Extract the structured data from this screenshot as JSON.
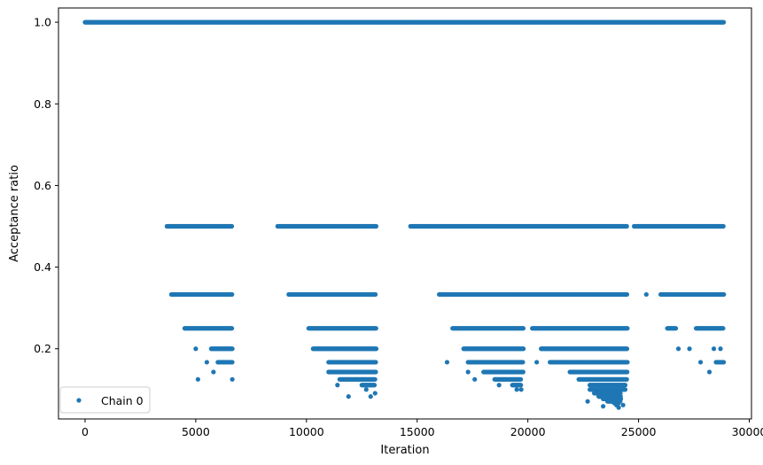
{
  "chart_data": {
    "type": "scatter",
    "xlabel": "Iteration",
    "ylabel": "Acceptance ratio",
    "xlim": [
      -1200,
      30100
    ],
    "ylim": [
      0.028,
      1.035
    ],
    "xticks": [
      0,
      5000,
      10000,
      15000,
      20000,
      25000,
      30000
    ],
    "yticks": [
      0.2,
      0.4,
      0.6,
      0.8,
      1.0
    ],
    "xtick_labels": [
      "0",
      "5000",
      "10000",
      "15000",
      "20000",
      "25000",
      "30000"
    ],
    "ytick_labels": [
      "0.2",
      "0.4",
      "0.6",
      "0.8",
      "1.0"
    ],
    "grid": false,
    "legend_position": "lower-left",
    "series": [
      {
        "name": "Chain 0",
        "color": "#1f77b4",
        "marker": "circle",
        "bands": [
          {
            "y": 1.0,
            "ranges": [
              [
                0,
                28850
              ]
            ]
          },
          {
            "y": 0.5,
            "ranges": [
              [
                3700,
                6650
              ],
              [
                8700,
                13150
              ],
              [
                14700,
                24500
              ],
              [
                24800,
                28850
              ]
            ]
          },
          {
            "y": 0.333,
            "ranges": [
              [
                3900,
                6650
              ],
              [
                9200,
                13150
              ],
              [
                16000,
                24500
              ],
              [
                26000,
                28850
              ]
            ],
            "extra": [
              16000,
              16250,
              25350
            ]
          },
          {
            "y": 0.25,
            "ranges": [
              [
                4500,
                6650
              ],
              [
                10100,
                13150
              ],
              [
                16600,
                19800
              ],
              [
                20200,
                24500
              ],
              [
                26300,
                26700
              ],
              [
                27600,
                28850
              ]
            ]
          },
          {
            "y": 0.2,
            "ranges": [
              [
                5700,
                6650
              ],
              [
                10300,
                13150
              ],
              [
                17100,
                19800
              ],
              [
                20600,
                24500
              ]
            ],
            "extra": [
              5000,
              26800,
              27300,
              28400,
              28700
            ]
          },
          {
            "y": 0.167,
            "ranges": [
              [
                6000,
                6650
              ],
              [
                11000,
                13150
              ],
              [
                17300,
                19800
              ],
              [
                21000,
                24500
              ],
              [
                28500,
                28850
              ]
            ],
            "extra": [
              5500,
              16350,
              20400,
              27800
            ]
          },
          {
            "y": 0.143,
            "ranges": [
              [
                11000,
                13150
              ],
              [
                18000,
                19800
              ],
              [
                21900,
                24500
              ]
            ],
            "extra": [
              5800,
              17300,
              28200
            ]
          },
          {
            "y": 0.125,
            "ranges": [
              [
                11500,
                13100
              ],
              [
                18500,
                19700
              ],
              [
                22300,
                24500
              ]
            ],
            "extra": [
              5100,
              6650,
              17600
            ]
          },
          {
            "y": 0.111,
            "ranges": [
              [
                12500,
                13100
              ],
              [
                19300,
                19700
              ],
              [
                22800,
                24400
              ]
            ],
            "extra": [
              11400,
              18700
            ]
          },
          {
            "y": 0.1,
            "ranges": [
              [
                22800,
                24400
              ]
            ],
            "extra": [
              12700,
              19500,
              19700
            ]
          },
          {
            "y": 0.091,
            "ranges": [
              [
                23000,
                24200
              ]
            ],
            "extra": [
              13100
            ]
          },
          {
            "y": 0.083,
            "ranges": [
              [
                23200,
                24200
              ]
            ],
            "extra": [
              11900,
              12900
            ]
          },
          {
            "y": 0.077,
            "ranges": [
              [
                23400,
                24200
              ]
            ]
          },
          {
            "y": 0.071,
            "ranges": [
              [
                23600,
                24200
              ]
            ],
            "extra": [
              22700
            ]
          },
          {
            "y": 0.067,
            "extra": [
              23900,
              24100
            ]
          },
          {
            "y": 0.062,
            "extra": [
              24000,
              24300
            ]
          },
          {
            "y": 0.059,
            "extra": [
              23400
            ]
          },
          {
            "y": 0.056,
            "extra": [
              24100
            ]
          }
        ]
      }
    ]
  }
}
